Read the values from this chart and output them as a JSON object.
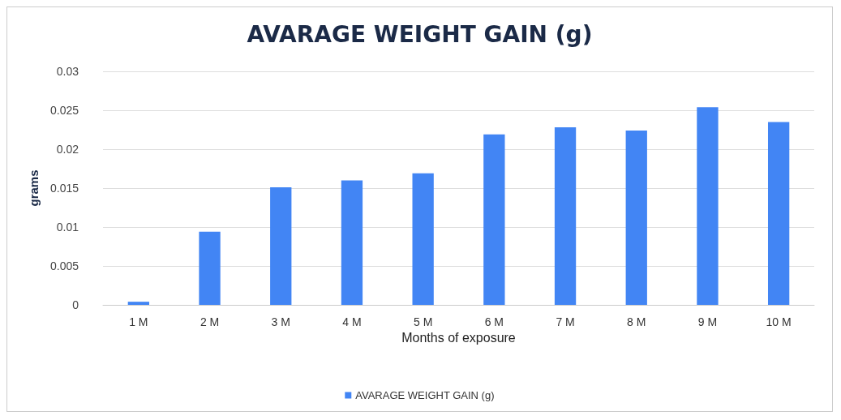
{
  "chart_data": {
    "type": "bar",
    "title": "AVARAGE WEIGHT GAIN (g)",
    "xlabel": "Months of exposure",
    "ylabel": "grams",
    "categories": [
      "1 M",
      "2 M",
      "3 M",
      "4 M",
      "5 M",
      "6 M",
      "7 M",
      "8 M",
      "9 M",
      "10 M"
    ],
    "series": [
      {
        "name": "AVARAGE WEIGHT GAIN (g)",
        "color": "#4285f4",
        "values": [
          0.0004,
          0.0094,
          0.0151,
          0.016,
          0.0169,
          0.0219,
          0.0228,
          0.0224,
          0.0254,
          0.0235
        ]
      }
    ],
    "ylim": [
      0,
      0.03
    ],
    "yticks": [
      0,
      0.005,
      0.01,
      0.015,
      0.02,
      0.025,
      0.03
    ],
    "grid": "y",
    "legend": "bottom"
  }
}
